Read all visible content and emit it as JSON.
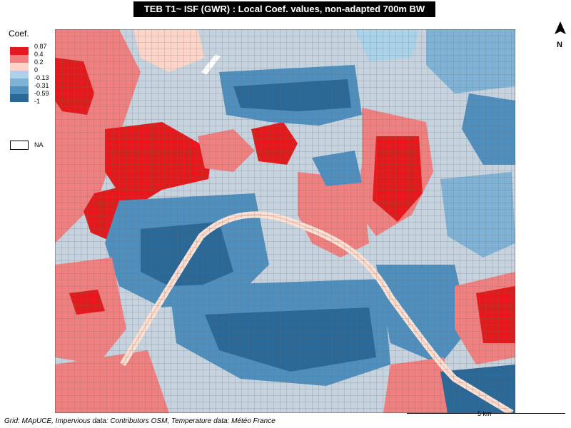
{
  "title": "TEB T1~ ISF (GWR) : Local Coef. values, non-adapted 700m BW",
  "legend": {
    "title": "Coef.",
    "breaks": [
      "0.87",
      "0.4",
      "0.2",
      "0",
      "-0.13",
      "-0.31",
      "-0.59",
      "-1"
    ],
    "classes": [
      {
        "color": "#e31a1c"
      },
      {
        "color": "#f08080"
      },
      {
        "color": "#fcd5c8"
      },
      {
        "color": "#aad3ea"
      },
      {
        "color": "#7fb2d5"
      },
      {
        "color": "#4f8fbd"
      },
      {
        "color": "#2a6898"
      }
    ],
    "na_label": "NA",
    "na_color": "#ffffff"
  },
  "north_label": "N",
  "scale_label": "5 km",
  "source": "Grid: MApUCE, Impervious data: Contributors OSM, Temperature data: Météo France"
}
